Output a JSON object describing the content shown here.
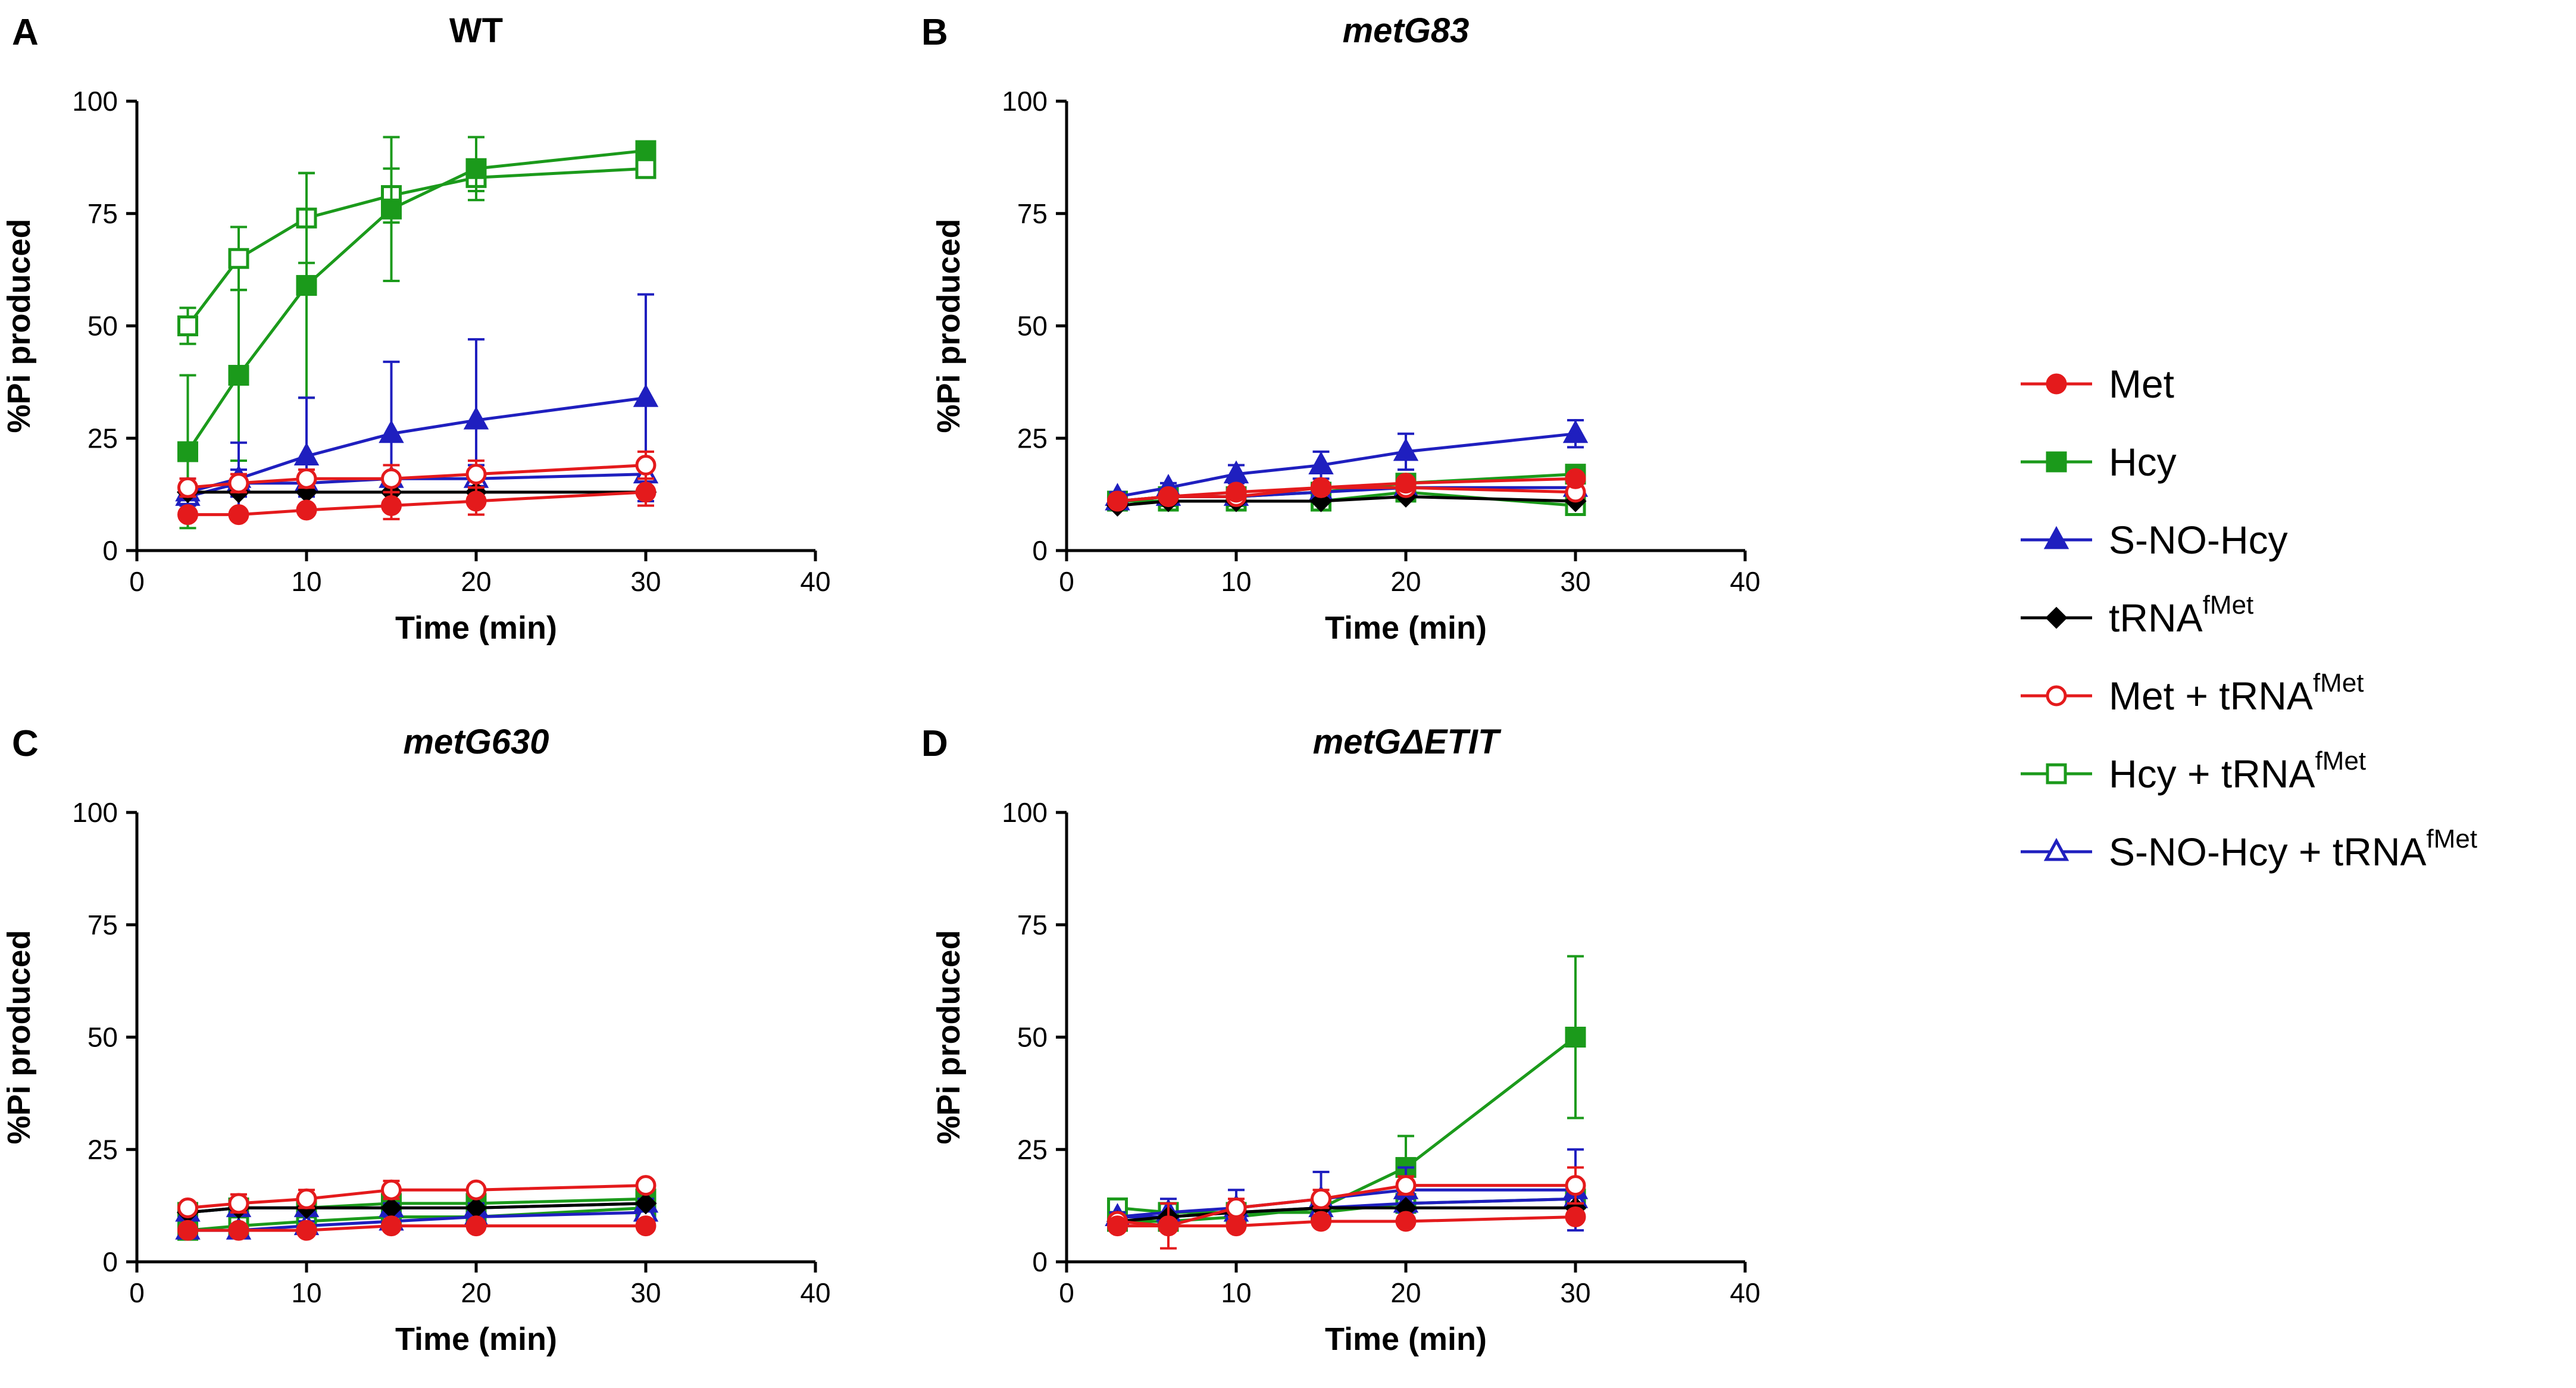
{
  "chart_data": [
    {
      "type": "line",
      "panel": "A",
      "title": "WT",
      "title_italic": false,
      "xlabel": "Time (min)",
      "ylabel": "%Pi produced",
      "xlim": [
        0,
        40
      ],
      "ylim": [
        0,
        100
      ],
      "x_ticks": [
        0,
        10,
        20,
        30,
        40
      ],
      "y_ticks": [
        0,
        25,
        50,
        75,
        100
      ],
      "x": [
        3,
        6,
        10,
        15,
        20,
        30
      ],
      "series": [
        {
          "name": "Met",
          "values": [
            8,
            8,
            9,
            10,
            11,
            13
          ],
          "errors": [
            0,
            0,
            0,
            3,
            3,
            3
          ]
        },
        {
          "name": "Hcy",
          "values": [
            22,
            39,
            59,
            76,
            85,
            89
          ],
          "errors": [
            17,
            19,
            25,
            16,
            7,
            0
          ]
        },
        {
          "name": "S-NO-Hcy",
          "values": [
            13,
            16,
            21,
            26,
            29,
            34
          ],
          "errors": [
            3,
            8,
            13,
            16,
            18,
            23
          ]
        },
        {
          "name": "tRNAfMet",
          "values": [
            13,
            13,
            13,
            13,
            13,
            13
          ],
          "errors": [
            0,
            0,
            0,
            0,
            0,
            0
          ]
        },
        {
          "name": "Met + tRNAfMet",
          "values": [
            14,
            15,
            16,
            16,
            17,
            19
          ],
          "errors": [
            2,
            2,
            2,
            3,
            3,
            3
          ]
        },
        {
          "name": "Hcy + tRNAfMet",
          "values": [
            50,
            65,
            74,
            79,
            83,
            85
          ],
          "errors": [
            4,
            7,
            10,
            6,
            3,
            0
          ]
        },
        {
          "name": "S-NO-Hcy + tRNAfMet",
          "values": [
            12,
            15,
            15,
            16,
            16,
            17
          ],
          "errors": [
            3,
            3,
            3,
            3,
            3,
            3
          ]
        }
      ]
    },
    {
      "type": "line",
      "panel": "B",
      "title": "metG83",
      "title_italic": true,
      "xlabel": "Time (min)",
      "ylabel": "%Pi produced",
      "xlim": [
        0,
        40
      ],
      "ylim": [
        0,
        100
      ],
      "x_ticks": [
        0,
        10,
        20,
        30,
        40
      ],
      "y_ticks": [
        0,
        25,
        50,
        75,
        100
      ],
      "x": [
        3,
        6,
        10,
        15,
        20,
        30
      ],
      "series": [
        {
          "name": "Met",
          "values": [
            11,
            12,
            13,
            14,
            15,
            16
          ],
          "errors": [
            1,
            1,
            1,
            1,
            1,
            1
          ]
        },
        {
          "name": "Hcy",
          "values": [
            11,
            12,
            12,
            13,
            15,
            17
          ],
          "errors": [
            1,
            1,
            1,
            1,
            1,
            1
          ]
        },
        {
          "name": "S-NO-Hcy",
          "values": [
            12,
            14,
            17,
            19,
            22,
            26
          ],
          "errors": [
            1,
            1,
            2,
            3,
            4,
            3
          ]
        },
        {
          "name": "tRNAfMet",
          "values": [
            10,
            11,
            11,
            11,
            12,
            11
          ],
          "errors": [
            0,
            0,
            0,
            0,
            0,
            0
          ]
        },
        {
          "name": "Met + tRNAfMet",
          "values": [
            11,
            12,
            12,
            14,
            14,
            13
          ],
          "errors": [
            1,
            1,
            1,
            1,
            1,
            1
          ]
        },
        {
          "name": "Hcy + tRNAfMet",
          "values": [
            11,
            11,
            11,
            11,
            13,
            10
          ],
          "errors": [
            1,
            1,
            1,
            1,
            1,
            1
          ]
        },
        {
          "name": "S-NO-Hcy + tRNAfMet",
          "values": [
            11,
            12,
            12,
            13,
            14,
            14
          ],
          "errors": [
            1,
            1,
            1,
            1,
            1,
            1
          ]
        }
      ]
    },
    {
      "type": "line",
      "panel": "C",
      "title": "metG630",
      "title_italic": true,
      "xlabel": "Time (min)",
      "ylabel": "%Pi produced",
      "xlim": [
        0,
        40
      ],
      "ylim": [
        0,
        100
      ],
      "x_ticks": [
        0,
        10,
        20,
        30,
        40
      ],
      "y_ticks": [
        0,
        25,
        50,
        75,
        100
      ],
      "x": [
        3,
        6,
        10,
        15,
        20,
        30
      ],
      "series": [
        {
          "name": "Met",
          "values": [
            7,
            7,
            7,
            8,
            8,
            8
          ],
          "errors": [
            1,
            1,
            1,
            1,
            1,
            1
          ]
        },
        {
          "name": "Hcy",
          "values": [
            11,
            12,
            12,
            13,
            13,
            14
          ],
          "errors": [
            1,
            1,
            1,
            1,
            1,
            1
          ]
        },
        {
          "name": "S-NO-Hcy",
          "values": [
            11,
            12,
            12,
            12,
            12,
            13
          ],
          "errors": [
            1,
            1,
            1,
            1,
            1,
            1
          ]
        },
        {
          "name": "tRNAfMet",
          "values": [
            11,
            12,
            12,
            12,
            12,
            13
          ],
          "errors": [
            0,
            0,
            0,
            0,
            0,
            0
          ]
        },
        {
          "name": "Met + tRNAfMet",
          "values": [
            12,
            13,
            14,
            16,
            16,
            17
          ],
          "errors": [
            1,
            2,
            2,
            2,
            1,
            1
          ]
        },
        {
          "name": "Hcy + tRNAfMet",
          "values": [
            7,
            8,
            9,
            10,
            10,
            12
          ],
          "errors": [
            1,
            1,
            1,
            1,
            1,
            1
          ]
        },
        {
          "name": "S-NO-Hcy + tRNAfMet",
          "values": [
            7,
            7,
            8,
            9,
            10,
            11
          ],
          "errors": [
            1,
            1,
            1,
            1,
            1,
            1
          ]
        }
      ]
    },
    {
      "type": "line",
      "panel": "D",
      "title": "metGΔETIT",
      "title_italic": true,
      "xlabel": "Time (min)",
      "ylabel": "%Pi produced",
      "xlim": [
        0,
        40
      ],
      "ylim": [
        0,
        100
      ],
      "x_ticks": [
        0,
        10,
        20,
        30,
        40
      ],
      "y_ticks": [
        0,
        25,
        50,
        75,
        100
      ],
      "x": [
        3,
        6,
        10,
        15,
        20,
        30
      ],
      "series": [
        {
          "name": "Met",
          "values": [
            8,
            8,
            8,
            9,
            9,
            10
          ],
          "errors": [
            1,
            1,
            1,
            1,
            1,
            1
          ]
        },
        {
          "name": "Hcy",
          "values": [
            9,
            9,
            10,
            12,
            21,
            50
          ],
          "errors": [
            1,
            1,
            1,
            2,
            7,
            18
          ]
        },
        {
          "name": "S-NO-Hcy",
          "values": [
            10,
            11,
            12,
            14,
            16,
            16
          ],
          "errors": [
            1,
            3,
            4,
            6,
            5,
            9
          ]
        },
        {
          "name": "tRNAfMet",
          "values": [
            9,
            10,
            11,
            12,
            12,
            12
          ],
          "errors": [
            0,
            0,
            0,
            0,
            0,
            0
          ]
        },
        {
          "name": "Met + tRNAfMet",
          "values": [
            9,
            8,
            12,
            14,
            17,
            17
          ],
          "errors": [
            1,
            5,
            2,
            2,
            2,
            4
          ]
        },
        {
          "name": "Hcy + tRNAfMet",
          "values": [
            12,
            11,
            11,
            11,
            13,
            14
          ],
          "errors": [
            1,
            1,
            1,
            1,
            1,
            1
          ]
        },
        {
          "name": "S-NO-Hcy + tRNAfMet",
          "values": [
            10,
            10,
            11,
            12,
            13,
            14
          ],
          "errors": [
            1,
            1,
            1,
            1,
            1,
            1
          ]
        }
      ]
    }
  ],
  "legend": [
    {
      "name": "Met",
      "main": "Met",
      "sup": "",
      "color": "#e41a1c",
      "marker": "circle",
      "filled": true
    },
    {
      "name": "Hcy",
      "main": "Hcy",
      "sup": "",
      "color": "#1b9a1b",
      "marker": "square",
      "filled": true
    },
    {
      "name": "S-NO-Hcy",
      "main": "S-NO-Hcy",
      "sup": "",
      "color": "#1f1fbf",
      "marker": "triangle",
      "filled": true
    },
    {
      "name": "tRNAfMet",
      "main": "tRNA",
      "sup": "fMet",
      "color": "#000000",
      "marker": "diamond",
      "filled": true
    },
    {
      "name": "Met + tRNAfMet",
      "main": "Met + tRNA",
      "sup": "fMet",
      "color": "#e41a1c",
      "marker": "circle",
      "filled": false
    },
    {
      "name": "Hcy + tRNAfMet",
      "main": "Hcy + tRNA",
      "sup": "fMet",
      "color": "#1b9a1b",
      "marker": "square",
      "filled": false
    },
    {
      "name": "S-NO-Hcy + tRNAfMet",
      "main": "S-NO-Hcy + tRNA",
      "sup": "fMet",
      "color": "#1f1fbf",
      "marker": "triangle",
      "filled": false
    }
  ]
}
